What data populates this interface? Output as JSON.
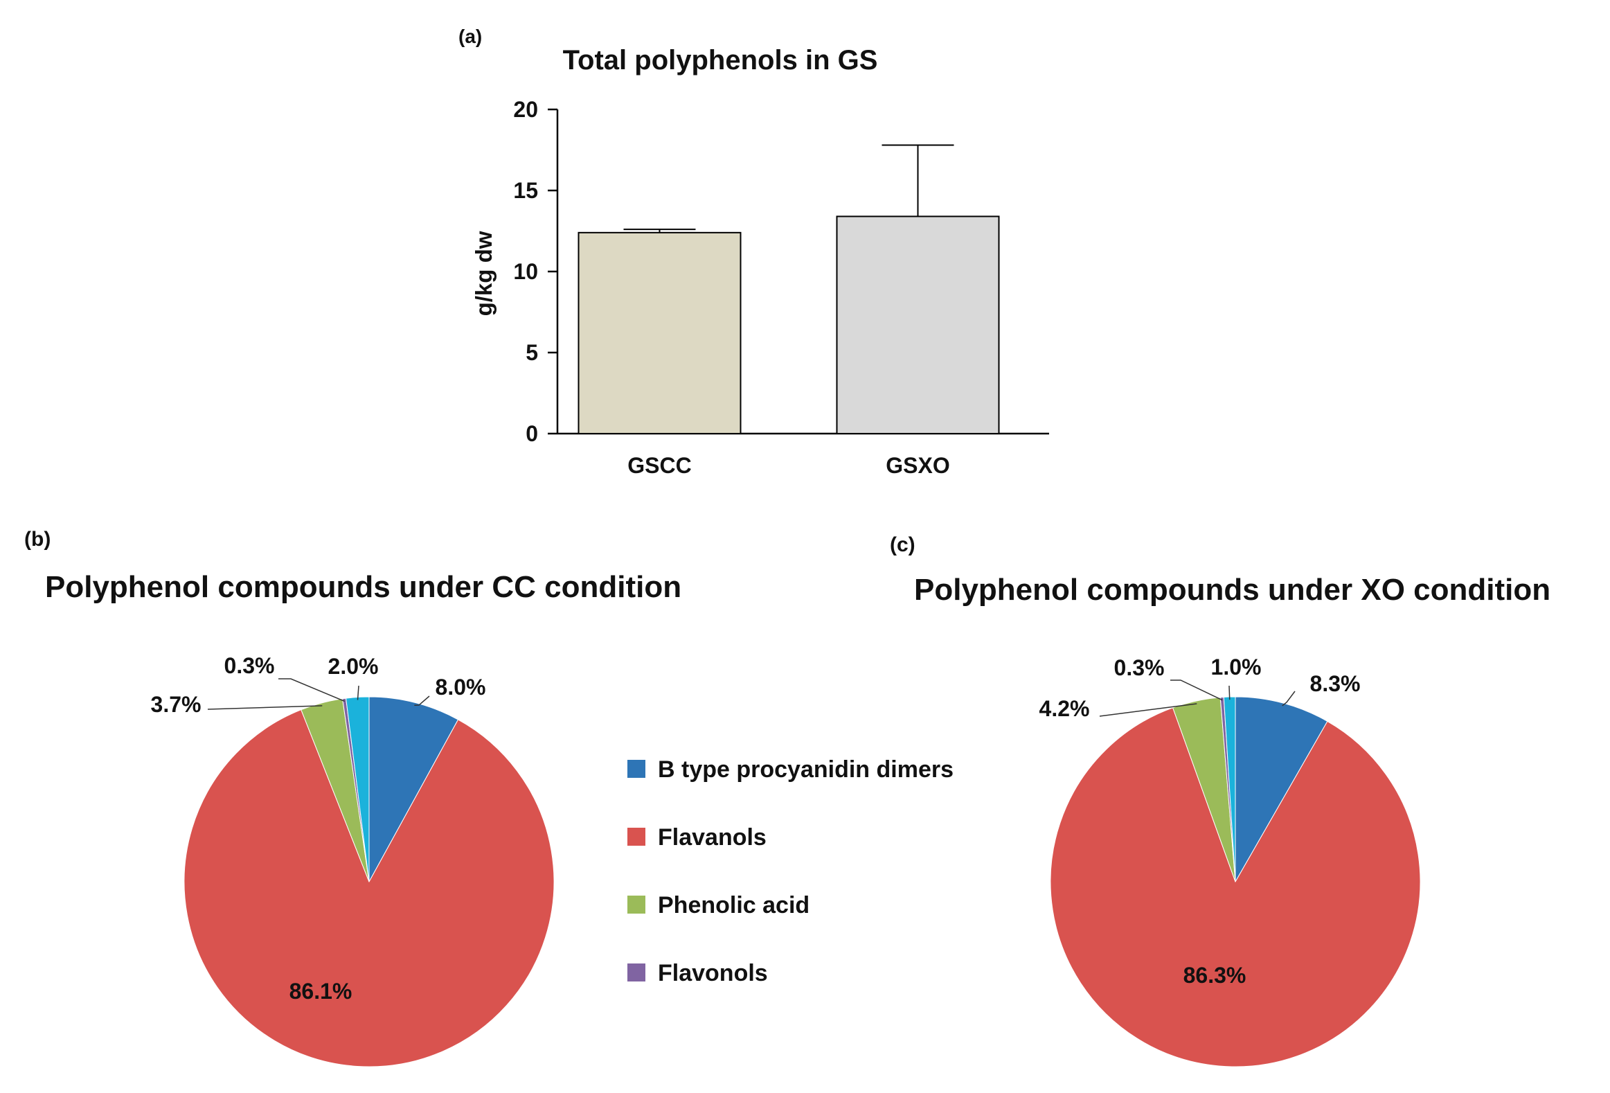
{
  "chart_data": [
    {
      "panel": "(a)",
      "type": "bar",
      "title": "Total polyphenols in GS",
      "xlabel": "",
      "ylabel": "g/kg dw",
      "categories": [
        "GSCC",
        "GSXO"
      ],
      "values": [
        12.4,
        13.4
      ],
      "error_upper": [
        0.2,
        4.4
      ],
      "bar_colors": [
        "#DDD9C3",
        "#D9D9D9"
      ],
      "ylim": [
        0,
        20
      ],
      "yticks": [
        0,
        5,
        10,
        15,
        20
      ],
      "ytick_labels": [
        "0",
        "5",
        "10",
        "15",
        "20"
      ],
      "grid": false,
      "legend": "none"
    },
    {
      "panel": "(b)",
      "type": "pie",
      "title": "Polyphenol compounds under CC condition",
      "slices": [
        {
          "label": "B type procyanidin dimers",
          "value": 8.0,
          "text": "8.0%",
          "color": "#2E75B6"
        },
        {
          "label": "Flavanols",
          "value": 86.1,
          "text": "86.1%",
          "color": "#D9534F"
        },
        {
          "label": "Phenolic acid",
          "value": 3.7,
          "text": "3.7%",
          "color": "#9BBB59"
        },
        {
          "label": "Flavonols",
          "value": 0.3,
          "text": "0.3%",
          "color": "#8064A2"
        },
        {
          "label": "",
          "value": 2.0,
          "text": "2.0%",
          "color": "#1BB2DB"
        }
      ],
      "legend": "right"
    },
    {
      "panel": "(c)",
      "type": "pie",
      "title": "Polyphenol compounds under XO condition",
      "slices": [
        {
          "label": "B type procyanidin dimers",
          "value": 8.3,
          "text": "8.3%",
          "color": "#2E75B6"
        },
        {
          "label": "Flavanols",
          "value": 86.3,
          "text": "86.3%",
          "color": "#D9534F"
        },
        {
          "label": "Phenolic acid",
          "value": 4.2,
          "text": "4.2%",
          "color": "#9BBB59"
        },
        {
          "label": "Flavonols",
          "value": 0.3,
          "text": "0.3%",
          "color": "#8064A2"
        },
        {
          "label": "",
          "value": 1.0,
          "text": "1.0%",
          "color": "#1BB2DB"
        }
      ],
      "legend": "none"
    }
  ],
  "legend": {
    "items": [
      {
        "label": "B type procyanidin dimers",
        "color": "#2E75B6"
      },
      {
        "label": "Flavanols",
        "color": "#D9534F"
      },
      {
        "label": "Phenolic acid",
        "color": "#9BBB59"
      },
      {
        "label": "Flavonols",
        "color": "#8064A2"
      }
    ]
  }
}
